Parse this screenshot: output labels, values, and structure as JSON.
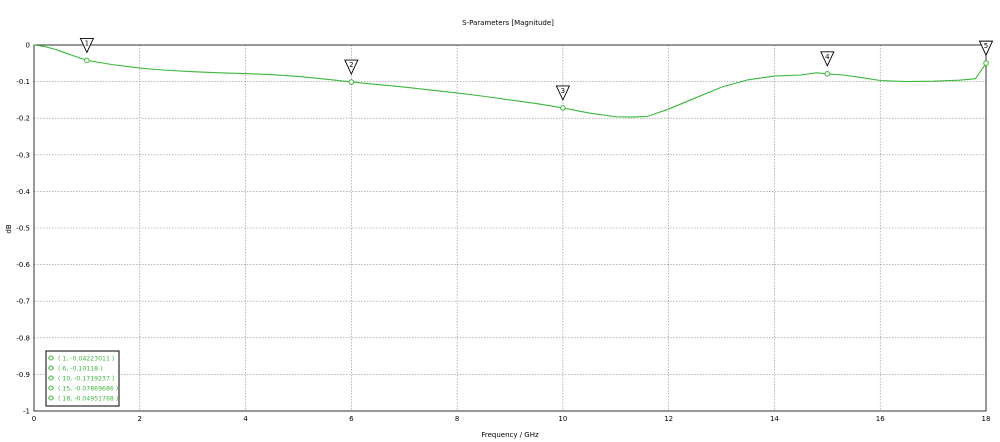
{
  "chart_data": {
    "type": "line",
    "title": "S-Parameters [Magnitude]",
    "xlabel": "Frequency / GHz",
    "ylabel": "dB",
    "xlim": [
      0,
      18
    ],
    "ylim": [
      -1,
      0
    ],
    "x_ticks": [
      "0",
      "2",
      "4",
      "6",
      "8",
      "10",
      "12",
      "14",
      "16",
      "18"
    ],
    "y_ticks": [
      "0",
      "-0.1",
      "-0.2",
      "-0.3",
      "-0.4",
      "-0.5",
      "-0.6",
      "-0.7",
      "-0.8",
      "-0.9",
      "-1"
    ],
    "grid": true,
    "line_color": "#3cb83c",
    "series": [
      {
        "x": [
          0,
          0.2,
          0.4,
          0.6,
          0.8,
          1,
          1.5,
          2,
          2.5,
          3,
          3.5,
          4,
          4.5,
          5,
          5.5,
          6,
          6.5,
          7,
          7.5,
          8,
          8.5,
          9,
          9.5,
          10,
          10.5,
          11,
          11.3,
          11.6,
          12,
          12.5,
          13,
          13.5,
          14,
          14.5,
          14.8,
          15,
          15.3,
          15.6,
          16,
          16.5,
          17,
          17.5,
          17.8,
          18
        ],
        "y": [
          0,
          -0.004,
          -0.012,
          -0.022,
          -0.032,
          -0.042,
          -0.054,
          -0.063,
          -0.069,
          -0.073,
          -0.076,
          -0.078,
          -0.081,
          -0.086,
          -0.093,
          -0.101,
          -0.108,
          -0.115,
          -0.123,
          -0.131,
          -0.14,
          -0.15,
          -0.16,
          -0.172,
          -0.186,
          -0.196,
          -0.197,
          -0.195,
          -0.175,
          -0.145,
          -0.115,
          -0.095,
          -0.085,
          -0.082,
          -0.076,
          -0.079,
          -0.082,
          -0.088,
          -0.097,
          -0.1,
          -0.099,
          -0.096,
          -0.092,
          -0.05
        ]
      }
    ],
    "markers": [
      {
        "id": "1",
        "x": 1,
        "y": -0.04223011
      },
      {
        "id": "2",
        "x": 6,
        "y": -0.10118
      },
      {
        "id": "3",
        "x": 10,
        "y": -0.1719237
      },
      {
        "id": "4",
        "x": 15,
        "y": -0.07869686
      },
      {
        "id": "5",
        "x": 18,
        "y": -0.04951768
      }
    ],
    "legend": {
      "placement": "bottom-left",
      "entries": [
        "( 1, -0.04223011 )",
        "( 6, -0.10118 )",
        "( 10, -0.1719237 )",
        "( 15, -0.07869686 )",
        "( 18, -0.04951768 )"
      ]
    }
  }
}
